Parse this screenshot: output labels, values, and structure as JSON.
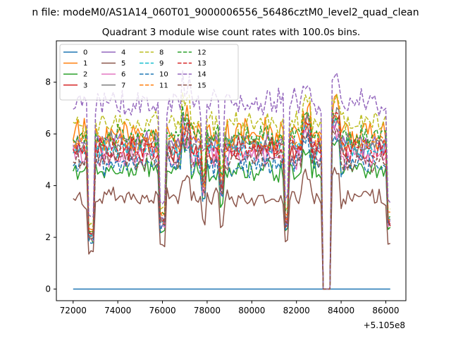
{
  "chart_data": {
    "type": "line",
    "suptitle": "n file: modeM0/AS1A14_060T01_9000006556_56486cztM0_level2_quad_clean",
    "title": "Quadrant 3 module wise count rates with 100.0s bins.",
    "xlabel": "",
    "ylabel": "",
    "x_offset_label": "+5.105e8",
    "xlim": [
      71250,
      86900
    ],
    "ylim": [
      -0.45,
      9.6
    ],
    "x_start": 72000,
    "x_end": 86200,
    "bin": 100,
    "xticks": [
      72000,
      74000,
      76000,
      78000,
      80000,
      82000,
      84000,
      86000
    ],
    "xtick_labels": [
      "72000",
      "74000",
      "76000",
      "78000",
      "80000",
      "82000",
      "84000",
      "86000"
    ],
    "yticks": [
      0,
      2,
      4,
      6,
      8
    ],
    "ytick_labels": [
      "0",
      "2",
      "4",
      "6",
      "8"
    ],
    "gaps": [
      {
        "start": 72650,
        "end": 72950,
        "depth": 0.35
      },
      {
        "start": 75900,
        "end": 76100,
        "depth": 0.45
      },
      {
        "start": 77750,
        "end": 77950,
        "depth": 0.7
      },
      {
        "start": 78550,
        "end": 78700,
        "depth": 0.7
      },
      {
        "start": 81450,
        "end": 81650,
        "depth": 0.45
      },
      {
        "start": 83200,
        "end": 83500,
        "depth": 0.0
      },
      {
        "start": 86100,
        "end": 86200,
        "depth": 0.45
      }
    ],
    "series": [
      {
        "name": "0",
        "color": "#1f77b4",
        "style": "solid",
        "level": 0.0,
        "noise": 0.0
      },
      {
        "name": "1",
        "color": "#ff7f0e",
        "style": "solid",
        "level": 6.0,
        "noise": 0.45
      },
      {
        "name": "2",
        "color": "#2ca02c",
        "style": "solid",
        "level": 4.6,
        "noise": 0.35
      },
      {
        "name": "3",
        "color": "#d62728",
        "style": "solid",
        "level": 5.3,
        "noise": 0.4
      },
      {
        "name": "4",
        "color": "#9467bd",
        "style": "solid",
        "level": 5.6,
        "noise": 0.35
      },
      {
        "name": "5",
        "color": "#8c564b",
        "style": "solid",
        "level": 3.5,
        "noise": 0.3
      },
      {
        "name": "6",
        "color": "#e377c2",
        "style": "solid",
        "level": 5.1,
        "noise": 0.35
      },
      {
        "name": "7",
        "color": "#7f7f7f",
        "style": "solid",
        "level": 5.6,
        "noise": 0.35
      },
      {
        "name": "8",
        "color": "#bcbd22",
        "style": "dashed",
        "level": 6.4,
        "noise": 0.35
      },
      {
        "name": "9",
        "color": "#17becf",
        "style": "dashed",
        "level": 5.4,
        "noise": 0.3
      },
      {
        "name": "10",
        "color": "#1f77b4",
        "style": "dashed",
        "level": 4.8,
        "noise": 0.35
      },
      {
        "name": "11",
        "color": "#ff7f0e",
        "style": "dashed",
        "level": 5.7,
        "noise": 0.35
      },
      {
        "name": "12",
        "color": "#2ca02c",
        "style": "dashed",
        "level": 5.9,
        "noise": 0.35
      },
      {
        "name": "13",
        "color": "#d62728",
        "style": "dashed",
        "level": 5.4,
        "noise": 0.35
      },
      {
        "name": "14",
        "color": "#9467bd",
        "style": "dashed",
        "level": 7.2,
        "noise": 0.4
      },
      {
        "name": "15",
        "color": "#8c564b",
        "style": "dashed",
        "level": 5.0,
        "noise": 0.35
      }
    ],
    "legend_location": "top-left",
    "legend_columns": 4
  }
}
